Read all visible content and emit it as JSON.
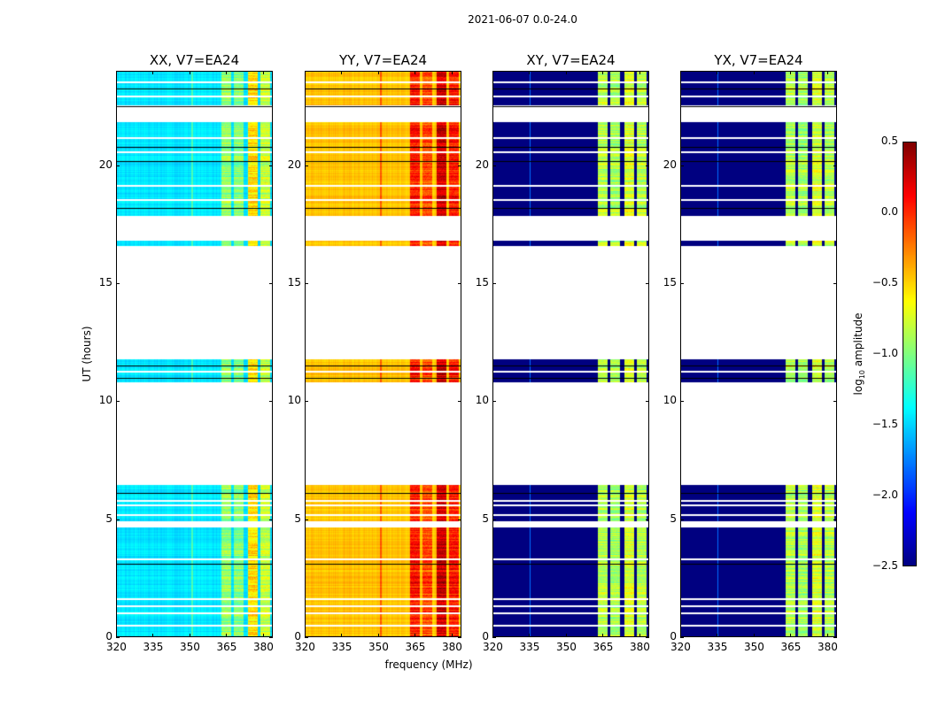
{
  "chart_data": {
    "type": "heatmap",
    "title": "2021-06-07 0.0-24.0",
    "xlabel": "frequency (MHz)",
    "ylabel": "UT (hours)",
    "xlim": [
      320,
      384
    ],
    "ylim": [
      0,
      24
    ],
    "xticks": [
      "320",
      "335",
      "350",
      "365",
      "380"
    ],
    "xtick_values": [
      320,
      335,
      350,
      365,
      380
    ],
    "yticks": [
      "0",
      "5",
      "10",
      "15",
      "20"
    ],
    "ytick_values": [
      0,
      5,
      10,
      15,
      20
    ],
    "colorbar": {
      "label": "log10 amplitude",
      "label_main": "log",
      "label_sub": "10",
      "label_rest": " amplitude",
      "range": [
        -2.5,
        0.5
      ],
      "ticks": [
        "0.5",
        "0.0",
        "−0.5",
        "−1.0",
        "−1.5",
        "−2.0",
        "−2.5"
      ],
      "tick_values": [
        0.5,
        0.0,
        -0.5,
        -1.0,
        -1.5,
        -2.0,
        -2.5
      ]
    },
    "data_segments_hours": [
      [
        0,
        4.65
      ],
      [
        4.9,
        6.45
      ],
      [
        10.8,
        11.8
      ],
      [
        16.6,
        16.84
      ],
      [
        17.9,
        21.86
      ],
      [
        22.6,
        24
      ]
    ],
    "flagged_lines_hours": [
      [
        0.5,
        "white"
      ],
      [
        1.0,
        "white"
      ],
      [
        1.3,
        "white"
      ],
      [
        1.6,
        "white"
      ],
      [
        3.1,
        "black"
      ],
      [
        3.3,
        "white"
      ],
      [
        5.2,
        "white"
      ],
      [
        5.6,
        "white"
      ],
      [
        5.8,
        "white"
      ],
      [
        6.1,
        "black"
      ],
      [
        11.0,
        "black"
      ],
      [
        11.3,
        "white"
      ],
      [
        11.5,
        "black"
      ],
      [
        18.2,
        "black"
      ],
      [
        18.6,
        "white"
      ],
      [
        19.2,
        "white"
      ],
      [
        20.2,
        "black"
      ],
      [
        20.6,
        "white"
      ],
      [
        20.8,
        "black"
      ],
      [
        21.2,
        "white"
      ],
      [
        23.0,
        "white"
      ],
      [
        23.3,
        "black"
      ],
      [
        23.6,
        "white"
      ],
      [
        22.55,
        "black"
      ]
    ],
    "band_channels_mhz": [
      [
        363,
        367
      ],
      [
        368,
        372
      ],
      [
        374,
        378
      ],
      [
        379,
        383
      ]
    ],
    "panels": [
      {
        "title": "XX, V7=EA24",
        "base": -1.45,
        "band_levels": [
          -0.95,
          -1.0,
          -0.55,
          -0.8
        ]
      },
      {
        "title": "YY, V7=EA24",
        "base": -0.45,
        "band_levels": [
          0.05,
          -0.1,
          0.25,
          0.05
        ]
      },
      {
        "title": "XY, V7=EA24",
        "base": -2.5,
        "band_levels": [
          -0.85,
          -0.9,
          -0.75,
          -0.85
        ]
      },
      {
        "title": "YX, V7=EA24",
        "base": -2.5,
        "band_levels": [
          -0.85,
          -0.9,
          -0.75,
          -0.85
        ]
      }
    ]
  }
}
